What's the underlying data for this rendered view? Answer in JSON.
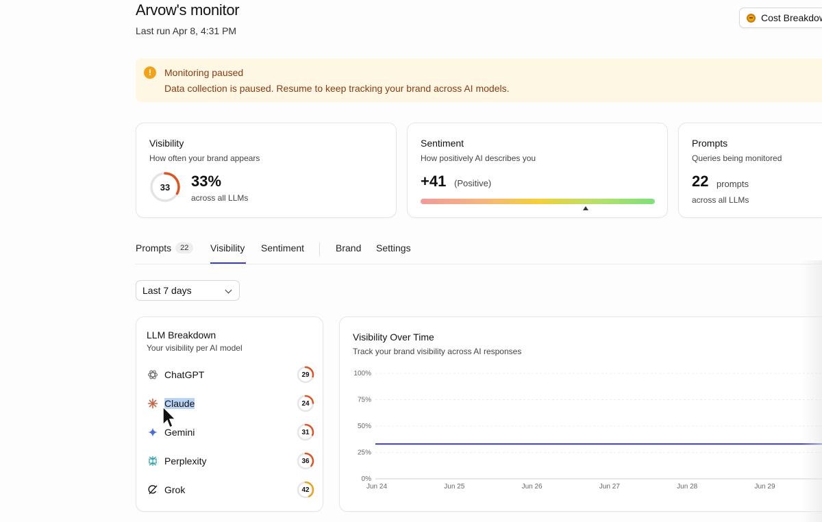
{
  "header": {
    "title": "Arvow's monitor",
    "last_run": "Last run Apr 8, 4:31 PM",
    "cost_button": "Cost Breakdown"
  },
  "alert": {
    "title": "Monitoring paused",
    "message": "Data collection is paused. Resume to keep tracking your brand across AI models.",
    "icon": "!"
  },
  "metrics": {
    "visibility": {
      "title": "Visibility",
      "subtitle": "How often your brand appears",
      "ring_value": "33",
      "value": "33%",
      "caption": "across all LLMs",
      "fraction": 0.33
    },
    "sentiment": {
      "title": "Sentiment",
      "subtitle": "How positively AI describes you",
      "value": "+41",
      "label": "(Positive)",
      "marker_fraction": 0.705
    },
    "prompts": {
      "title": "Prompts",
      "subtitle": "Queries being monitored",
      "value": "22",
      "unit": "prompts",
      "caption": "across all LLMs"
    }
  },
  "tabs": [
    {
      "label": "Prompts",
      "badge": "22"
    },
    {
      "label": "Visibility"
    },
    {
      "label": "Sentiment"
    },
    {
      "label": "Brand"
    },
    {
      "label": "Settings"
    }
  ],
  "active_tab": "Visibility",
  "date_range": "Last 7 days",
  "llm_breakdown": {
    "title": "LLM Breakdown",
    "subtitle": "Your visibility per AI model",
    "items": [
      {
        "name": "ChatGPT",
        "score": "29",
        "fraction": 0.29,
        "color": "#e0531f",
        "icon": "chatgpt-icon"
      },
      {
        "name": "Claude",
        "score": "24",
        "fraction": 0.24,
        "color": "#e0531f",
        "icon": "claude-icon"
      },
      {
        "name": "Gemini",
        "score": "31",
        "fraction": 0.31,
        "color": "#e0531f",
        "icon": "gemini-icon"
      },
      {
        "name": "Perplexity",
        "score": "36",
        "fraction": 0.36,
        "color": "#e0531f",
        "icon": "perplexity-icon"
      },
      {
        "name": "Grok",
        "score": "42",
        "fraction": 0.42,
        "color": "#e8a317",
        "icon": "grok-icon"
      }
    ]
  },
  "chart": {
    "title": "Visibility Over Time",
    "subtitle": "Track your brand visibility across AI responses"
  },
  "chart_data": {
    "type": "line",
    "x": [
      "Jun 24",
      "Jun 25",
      "Jun 26",
      "Jun 27",
      "Jun 28",
      "Jun 29"
    ],
    "series": [
      {
        "values": [
          33,
          33,
          33,
          33,
          33,
          33
        ],
        "color": "#3b3bd4"
      }
    ],
    "yticks": [
      "0%",
      "25%",
      "50%",
      "75%",
      "100%"
    ],
    "ylim": [
      0,
      100
    ],
    "grid": true
  },
  "colors": {
    "accent": "#3a3ac9",
    "alert_bg": "#fdf7e4",
    "alert_text": "#8a3a12",
    "ring_orange": "#e0531f"
  }
}
